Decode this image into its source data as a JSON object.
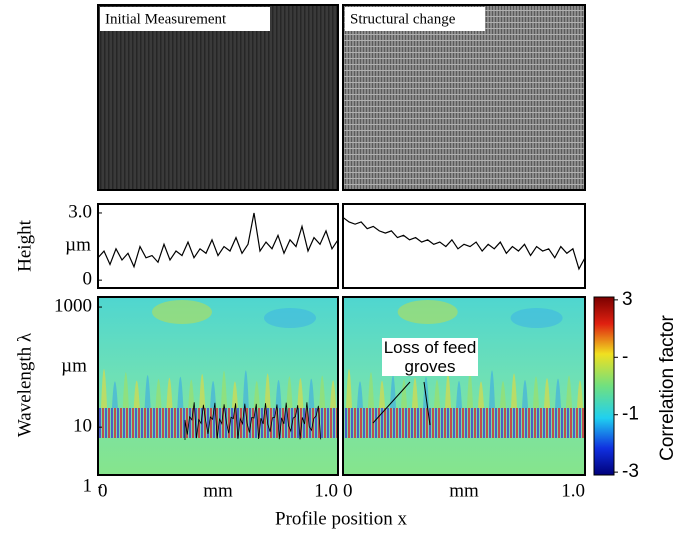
{
  "images": {
    "left_label": "Initial Measurement",
    "right_label": "Structural change"
  },
  "chart_data": [
    {
      "type": "line",
      "ylabel": "Height",
      "yunit": "µm",
      "color": "#000000",
      "xlim": [
        0,
        1
      ],
      "ylim": [
        -0.35,
        3.4
      ],
      "yticks": [
        0,
        {
          "value": 3,
          "label": "3.0"
        }
      ],
      "x": [
        0,
        0.025,
        0.05,
        0.075,
        0.1,
        0.125,
        0.15,
        0.175,
        0.2,
        0.225,
        0.25,
        0.275,
        0.3,
        0.325,
        0.35,
        0.375,
        0.4,
        0.425,
        0.45,
        0.475,
        0.5,
        0.525,
        0.55,
        0.575,
        0.6,
        0.625,
        0.65,
        0.675,
        0.7,
        0.725,
        0.75,
        0.775,
        0.8,
        0.825,
        0.85,
        0.875,
        0.9,
        0.925,
        0.95,
        0.975,
        1
      ],
      "values": [
        1.0,
        1.3,
        0.7,
        1.4,
        0.9,
        1.2,
        0.6,
        1.5,
        1.0,
        1.1,
        0.8,
        1.6,
        0.9,
        1.3,
        1.1,
        1.7,
        1.0,
        1.4,
        1.2,
        1.8,
        1.1,
        1.5,
        1.3,
        1.9,
        1.2,
        1.6,
        3.0,
        1.3,
        1.7,
        1.4,
        2.0,
        1.2,
        1.8,
        1.5,
        2.4,
        1.3,
        1.9,
        1.6,
        2.2,
        1.4,
        1.8
      ]
    },
    {
      "type": "line",
      "color": "#000000",
      "xlim": [
        0,
        1
      ],
      "ylim": [
        -0.35,
        3.4
      ],
      "x": [
        0,
        0.025,
        0.05,
        0.075,
        0.1,
        0.125,
        0.15,
        0.175,
        0.2,
        0.225,
        0.25,
        0.275,
        0.3,
        0.325,
        0.35,
        0.375,
        0.4,
        0.425,
        0.45,
        0.475,
        0.5,
        0.525,
        0.55,
        0.575,
        0.6,
        0.625,
        0.65,
        0.675,
        0.7,
        0.725,
        0.75,
        0.775,
        0.8,
        0.825,
        0.85,
        0.875,
        0.9,
        0.925,
        0.95,
        0.975,
        1
      ],
      "values": [
        2.8,
        2.6,
        2.5,
        2.6,
        2.3,
        2.4,
        2.2,
        2.1,
        2.2,
        1.9,
        2.0,
        1.8,
        1.9,
        1.7,
        1.8,
        1.6,
        1.7,
        1.5,
        1.8,
        1.4,
        1.6,
        1.5,
        1.7,
        1.3,
        1.6,
        1.4,
        1.7,
        1.2,
        1.5,
        1.3,
        1.6,
        1.1,
        1.5,
        1.3,
        1.4,
        1.0,
        1.5,
        1.2,
        1.4,
        0.5,
        1.0
      ]
    },
    {
      "type": "heatmap",
      "ylabel": "Wavelength λ",
      "yunit": "µm",
      "log_scale": true,
      "ylim": [
        1.6,
        1470
      ],
      "yticks": [
        1,
        10,
        1000
      ],
      "xlim": [
        0,
        1
      ],
      "xticks": [
        0,
        {
          "value": 1,
          "label": "1.0"
        }
      ],
      "xlabel": "mm"
    },
    {
      "type": "heatmap",
      "xlim": [
        0,
        1
      ],
      "xticks": [
        0,
        {
          "value": 1,
          "label": "1.0"
        }
      ],
      "xlabel": "mm",
      "annotation": "Loss of feed groves",
      "colorbar": {
        "label": "Correlation factor",
        "lim": [
          -3.1,
          3.1
        ],
        "ticks": [
          3,
          {
            "value": 1,
            "label": "-"
          },
          -1,
          -3
        ]
      }
    }
  ],
  "xlabel": "Profile position x"
}
